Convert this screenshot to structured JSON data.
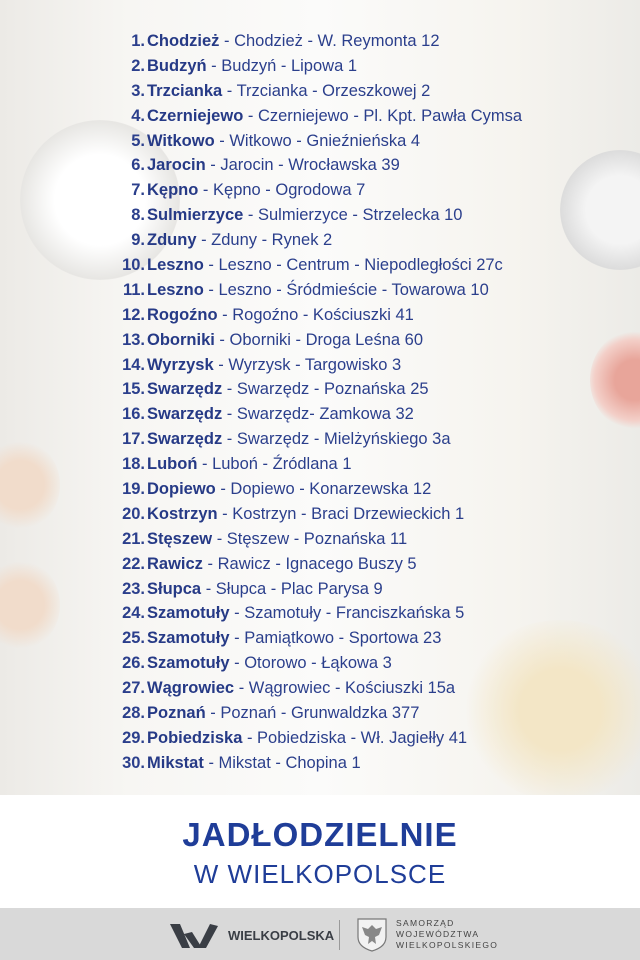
{
  "items": [
    {
      "n": "1.",
      "city": "Chodzież",
      "rest": " - Chodzież - W. Reymonta 12"
    },
    {
      "n": "2.",
      "city": "Budzyń",
      "rest": " - Budzyń - Lipowa 1"
    },
    {
      "n": "3.",
      "city": "Trzcianka",
      "rest": " - Trzcianka - Orzeszkowej 2"
    },
    {
      "n": "4.",
      "city": "Czerniejewo",
      "rest": " - Czerniejewo - Pl. Kpt. Pawła Cymsa"
    },
    {
      "n": "5.",
      "city": "Witkowo",
      "rest": " - Witkowo - Gnieźnieńska 4"
    },
    {
      "n": "6.",
      "city": "Jarocin",
      "rest": " - Jarocin - Wrocławska 39"
    },
    {
      "n": "7.",
      "city": "Kępno",
      "rest": " - Kępno - Ogrodowa 7"
    },
    {
      "n": "8.",
      "city": "Sulmierzyce",
      "rest": " - Sulmierzyce - Strzelecka 10"
    },
    {
      "n": "9.",
      "city": "Zduny",
      "rest": " - Zduny - Rynek 2"
    },
    {
      "n": "10.",
      "city": "Leszno",
      "rest": " - Leszno - Centrum - Niepodległości 27c"
    },
    {
      "n": "11.",
      "city": "Leszno",
      "rest": " - Leszno - Śródmieście - Towarowa 10"
    },
    {
      "n": "12.",
      "city": "Rogoźno",
      "rest": " - Rogoźno - Kościuszki 41"
    },
    {
      "n": "13.",
      "city": "Oborniki",
      "rest": " - Oborniki - Droga Leśna 60"
    },
    {
      "n": "14.",
      "city": "Wyrzysk",
      "rest": " - Wyrzysk - Targowisko 3"
    },
    {
      "n": "15.",
      "city": "Swarzędz",
      "rest": " - Swarzędz - Poznańska 25"
    },
    {
      "n": "16.",
      "city": "Swarzędz",
      "rest": " - Swarzędz- Zamkowa 32"
    },
    {
      "n": "17.",
      "city": "Swarzędz",
      "rest": " - Swarzędz - Mielżyńskiego 3a"
    },
    {
      "n": "18.",
      "city": "Luboń",
      "rest": " - Luboń - Źródlana 1"
    },
    {
      "n": "19.",
      "city": "Dopiewo",
      "rest": " - Dopiewo - Konarzewska 12"
    },
    {
      "n": "20.",
      "city": "Kostrzyn",
      "rest": " - Kostrzyn - Braci Drzewieckich 1"
    },
    {
      "n": "21.",
      "city": "Stęszew",
      "rest": " - Stęszew - Poznańska 11"
    },
    {
      "n": "22.",
      "city": "Rawicz",
      "rest": " - Rawicz - Ignacego Buszy 5"
    },
    {
      "n": "23.",
      "city": "Słupca",
      "rest": " - Słupca - Plac Parysa 9"
    },
    {
      "n": "24.",
      "city": "Szamotuły",
      "rest": " - Szamotuły - Franciszkańska 5"
    },
    {
      "n": "25.",
      "city": "Szamotuły",
      "rest": " - Pamiątkowo - Sportowa 23"
    },
    {
      "n": "26.",
      "city": "Szamotuły",
      "rest": " - Otorowo - Łąkowa 3"
    },
    {
      "n": "27.",
      "city": "Wągrowiec",
      "rest": " - Wągrowiec - Kościuszki 15a"
    },
    {
      "n": "28.",
      "city": "Poznań",
      "rest": " - Poznań - Grunwaldzka 377"
    },
    {
      "n": "29.",
      "city": "Pobiedziska",
      "rest": " - Pobiedziska - Wł. Jagiełły 41"
    },
    {
      "n": "30.",
      "city": "Mikstat",
      "rest": " - Mikstat - Chopina 1"
    }
  ],
  "title": {
    "line1": "JADŁODZIELNIE",
    "line2": "W WIELKOPOLSCE"
  },
  "footer": {
    "brand": "WIELKOPOLSKA",
    "authority": [
      "SAMORZĄD",
      "WOJEWÓDZTWA",
      "WIELKOPOLSKIEGO"
    ]
  },
  "colors": {
    "text": "#2b3f8c",
    "title": "#1f3d98",
    "footer_bg": "#d9d9d9"
  }
}
